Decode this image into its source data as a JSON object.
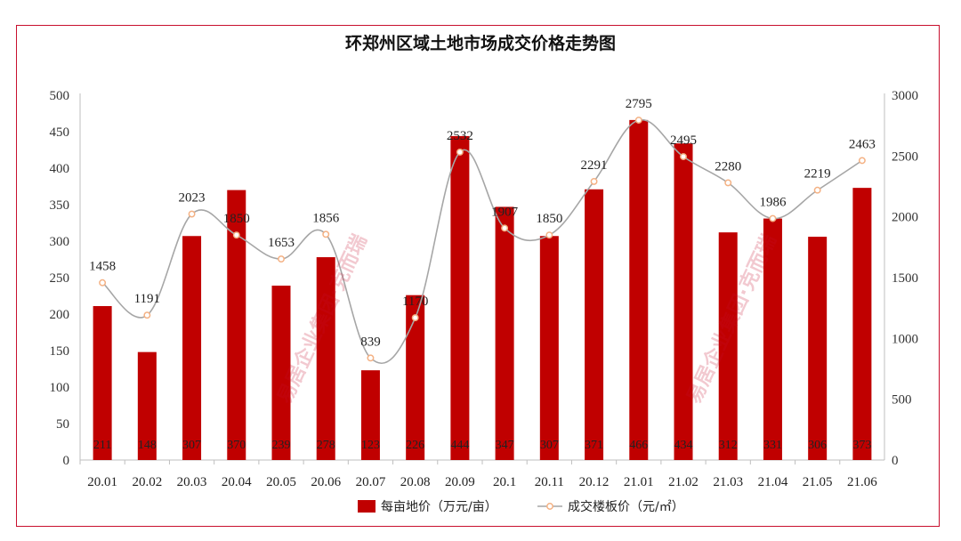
{
  "chart_data": {
    "type": "bar",
    "title": "环郑州区域土地市场成交价格走势图",
    "categories": [
      "20.01",
      "20.02",
      "20.03",
      "20.04",
      "20.05",
      "20.06",
      "20.07",
      "20.08",
      "20.09",
      "20.1",
      "20.11",
      "20.12",
      "21.01",
      "21.02",
      "21.03",
      "21.04",
      "21.05",
      "21.06"
    ],
    "series": [
      {
        "name": "每亩地价（万元/亩）",
        "type": "bar",
        "axis": "left",
        "color": "#c00000",
        "values": [
          211,
          148,
          307,
          370,
          239,
          278,
          123,
          226,
          444,
          347,
          307,
          371,
          466,
          434,
          312,
          331,
          306,
          373
        ]
      },
      {
        "name": "成交楼板价（元/㎡）",
        "type": "line",
        "axis": "right",
        "color": "#a6a6a6",
        "marker_color": "#f4b183",
        "values": [
          1458,
          1191,
          2023,
          1850,
          1653,
          1856,
          839,
          1170,
          2532,
          1907,
          1850,
          2291,
          2795,
          2495,
          2280,
          1986,
          2219,
          2463
        ]
      }
    ],
    "y_left": {
      "min": 0,
      "max": 500,
      "step": 50
    },
    "y_right": {
      "min": 0,
      "max": 3000,
      "step": 500
    },
    "grid": false,
    "legend_position": "bottom",
    "watermark": "易居企业集团·克而瑞"
  }
}
